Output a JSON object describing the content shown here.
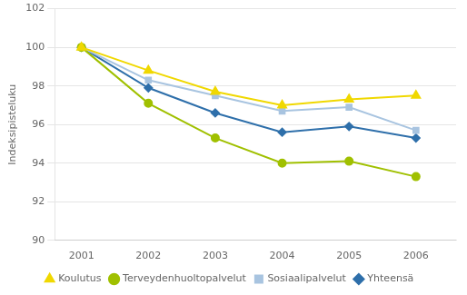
{
  "chart_data": {
    "type": "line",
    "x": [
      2001,
      2002,
      2003,
      2004,
      2005,
      2006
    ],
    "series": [
      {
        "name": "Koulutus",
        "color": "#f0d800",
        "marker": "triangle",
        "values": [
          100.0,
          98.8,
          97.7,
          97.0,
          97.3,
          97.5
        ]
      },
      {
        "name": "Terveydenhuoltopalvelut",
        "color": "#a0c000",
        "marker": "circle",
        "values": [
          100.0,
          97.1,
          95.3,
          94.0,
          94.1,
          93.3
        ]
      },
      {
        "name": "Sosiaalipalvelut",
        "color": "#a8c4e0",
        "marker": "square",
        "values": [
          100.0,
          98.3,
          97.5,
          96.7,
          96.9,
          95.7
        ]
      },
      {
        "name": "Yhteensä",
        "color": "#2e6faa",
        "marker": "diamond",
        "values": [
          100.0,
          97.9,
          96.6,
          95.6,
          95.9,
          95.3
        ]
      }
    ],
    "ylabel": "Indeksipisteluku",
    "xlim": [
      2000.6,
      2006.6
    ],
    "xticks": [
      2001,
      2002,
      2003,
      2004,
      2005,
      2006
    ],
    "ylim": [
      90,
      102
    ],
    "yticks": [
      90,
      92,
      94,
      96,
      98,
      100,
      102
    ],
    "grid": "y",
    "legend": "bottom"
  }
}
